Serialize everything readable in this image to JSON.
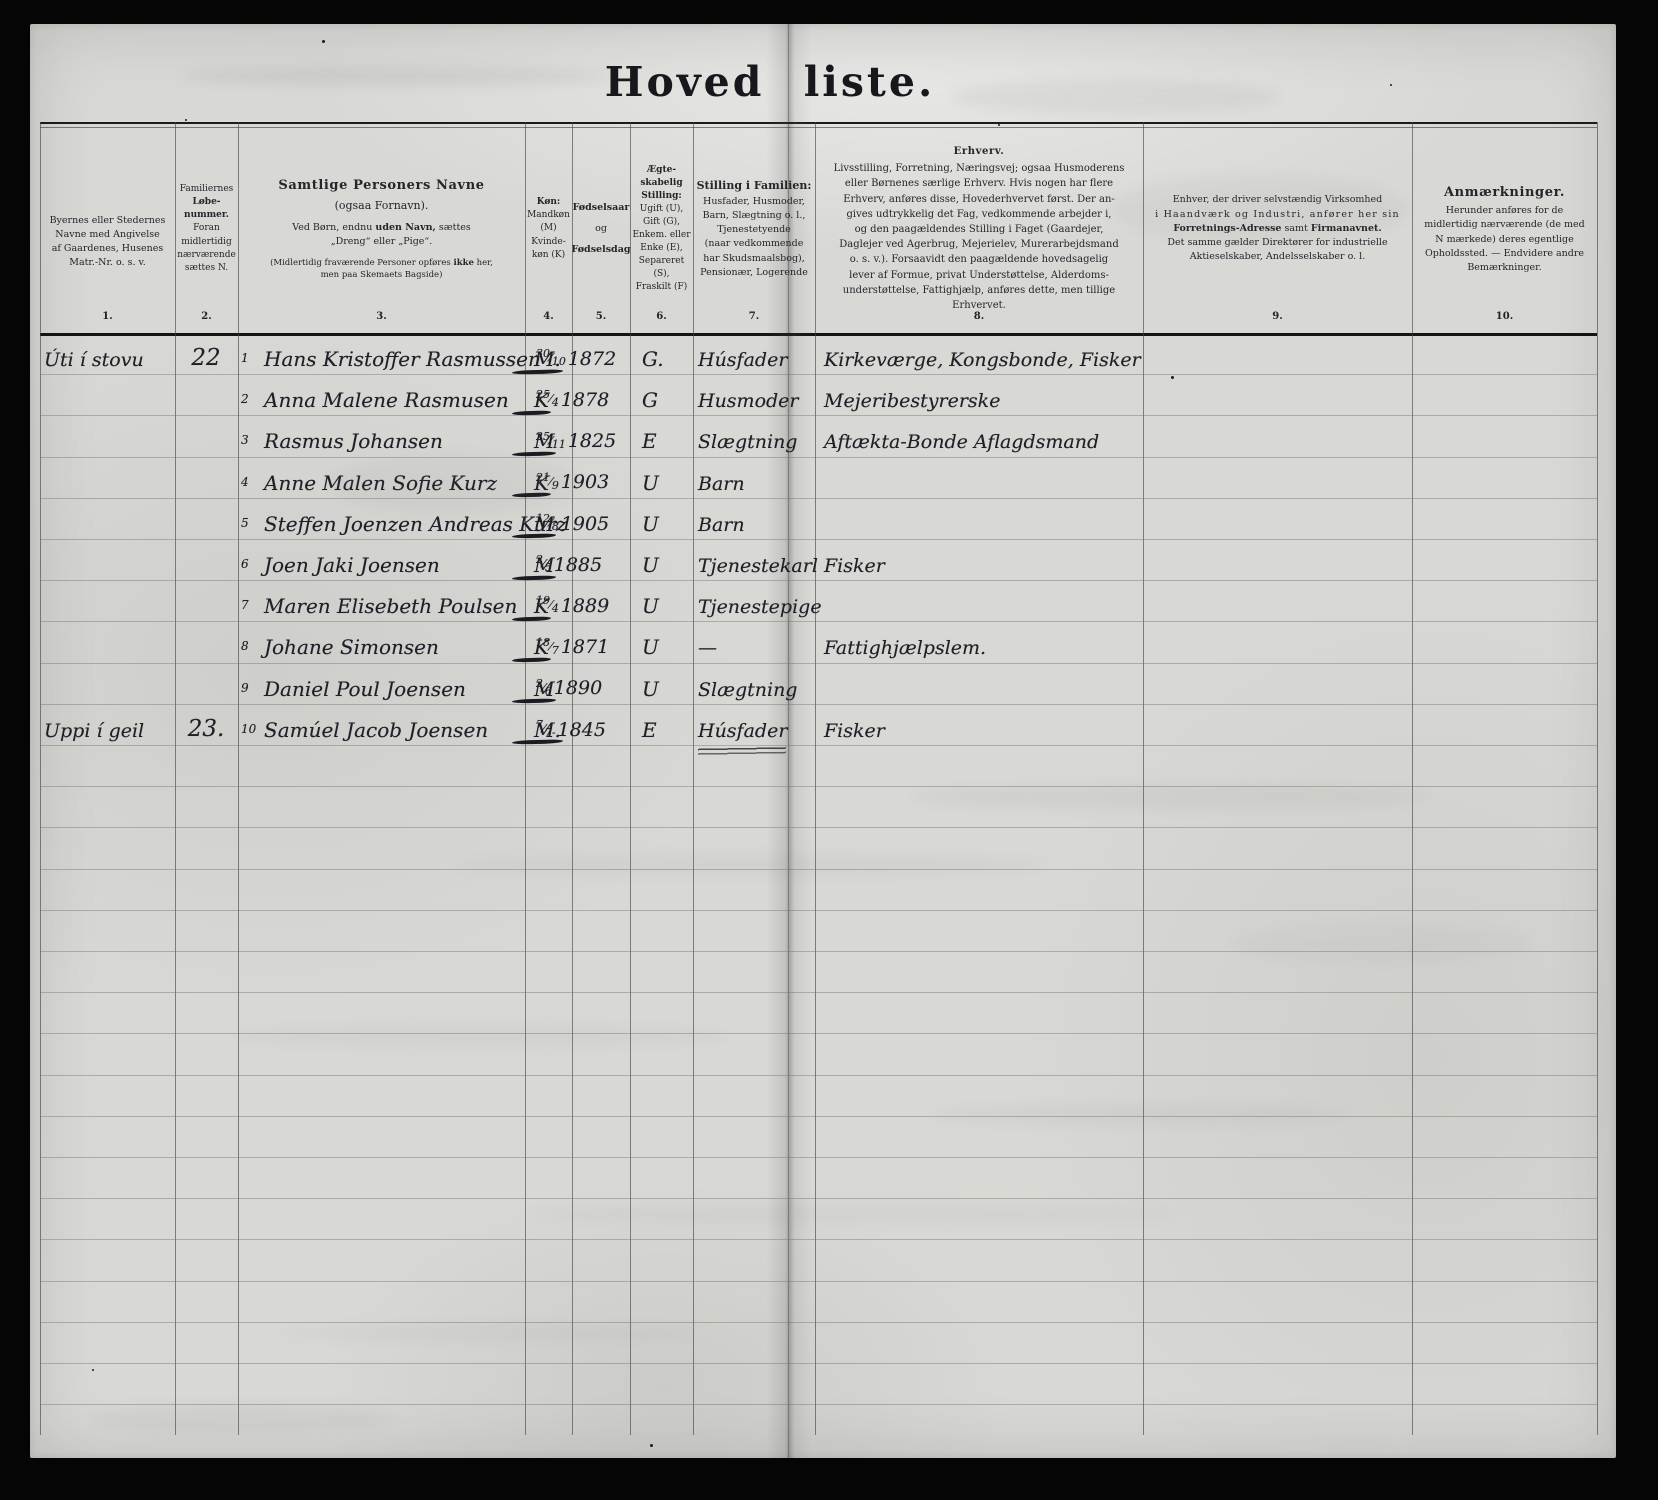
{
  "page": {
    "title": "Hoved liste."
  },
  "colors": {
    "paper": "#d8d8d5",
    "background": "#050505",
    "printed_ink": "#25252a",
    "hand_ink": "#1f2027"
  },
  "table": {
    "columns": [
      {
        "num": "1.",
        "lines": [
          {
            "t": "Byernes eller Stedernes"
          },
          {
            "t": "Navne med Angivelse"
          },
          {
            "t": "af Gaardenes, Husenes"
          },
          {
            "t": "Matr.-Nr. o. s. v."
          }
        ]
      },
      {
        "num": "2.",
        "lines": [
          {
            "t": "Familiernes"
          },
          {
            "t": "Løbe-",
            "b": 1
          },
          {
            "t": "nummer.",
            "b": 1
          },
          {
            "t": "Foran"
          },
          {
            "t": "midlertidig"
          },
          {
            "t": "nærværende"
          },
          {
            "t": "sættes N."
          }
        ]
      },
      {
        "num": "3.",
        "lines": [
          {
            "t": "Samtlige Personers Navne",
            "big": 1
          },
          {
            "t": "(ogsaa Fornavn).",
            "md": 1
          },
          {
            "gap": 1,
            "segs": [
              {
                "t": "Ved Børn, endnu "
              },
              {
                "t": "uden Navn,",
                "b": 1
              },
              {
                "t": " sættes"
              }
            ]
          },
          {
            "t": "„Dreng“ eller „Pige“."
          },
          {
            "gap": 1,
            "sm": 1,
            "segs": [
              {
                "t": "(Midlertidig fraværende Personer opføres "
              },
              {
                "t": "ikke",
                "b": 1
              },
              {
                "t": " her,"
              }
            ]
          },
          {
            "t": "men paa Skemaets Bagside)",
            "sm": 1
          }
        ]
      },
      {
        "num": "4.",
        "lines": [
          {
            "t": "Køn:",
            "b": 1
          },
          {
            "t": "Mandkøn"
          },
          {
            "t": "(M)"
          },
          {
            "t": "Kvinde-"
          },
          {
            "t": "køn (K)"
          }
        ]
      },
      {
        "num": "5.",
        "lines": [
          {
            "t": "Fødselsaar",
            "b": 1
          },
          {
            "t": "og",
            "gap": 1
          },
          {
            "t": "Fødselsdag",
            "b": 1,
            "gap": 1
          }
        ]
      },
      {
        "num": "6.",
        "lines": [
          {
            "t": "Ægte-",
            "b": 1
          },
          {
            "t": "skabelig",
            "b": 1
          },
          {
            "t": "Stilling:",
            "b": 1
          },
          {
            "t": "Ugift (U),"
          },
          {
            "t": "Gift (G),"
          },
          {
            "t": "Enkem. eller"
          },
          {
            "t": "Enke (E),"
          },
          {
            "t": "Separeret"
          },
          {
            "t": "(S),"
          },
          {
            "t": "Fraskilt (F)"
          }
        ]
      },
      {
        "num": "7.",
        "lines": [
          {
            "t": "Stilling i Familien:",
            "b": 1,
            "md": 1
          },
          {
            "t": "Husfader, Husmoder,"
          },
          {
            "t": "Barn, Slægtning o. l.,"
          },
          {
            "t": "Tjenestetyende"
          },
          {
            "t": "(naar vedkommende"
          },
          {
            "t": "har Skudsmaalsbog),"
          },
          {
            "t": "Pensionær, Logerende"
          }
        ]
      },
      {
        "num": "8.",
        "lines": [
          {
            "t": "Erhverv.",
            "big": 1
          },
          {
            "t": "Livsstilling, Forretning, Næringsvej; ogsaa Husmoderens"
          },
          {
            "t": "eller Børnenes særlige Erhverv.  Hvis nogen har flere"
          },
          {
            "t": "Erhverv, anføres disse, Hovederhvervet først.  Der an-"
          },
          {
            "t": "gives udtrykkelig det Fag, vedkommende arbejder i,"
          },
          {
            "t": "og den paagældendes Stilling i Faget (Gaardejer,"
          },
          {
            "t": "Daglejer ved Agerbrug, Mejerielev, Murerarbejdsmand"
          },
          {
            "t": "o. s. v.).  Forsaavidt den paagældende hovedsagelig"
          },
          {
            "t": "lever af Formue, privat Understøttelse, Alderdoms-"
          },
          {
            "t": "understøttelse, Fattighjælp, anføres dette, men tillige"
          },
          {
            "t": "Erhvervet."
          }
        ]
      },
      {
        "num": "9.",
        "lines": [
          {
            "t": "Enhver, der driver selvstændig Virksomhed"
          },
          {
            "t": "i Haandværk og Industri, anfører her sin",
            "sp": 1
          },
          {
            "segs": [
              {
                "t": "Forretnings-Adresse",
                "b": 1
              },
              {
                "t": " samt "
              },
              {
                "t": "Firmanavnet.",
                "b": 1
              }
            ]
          },
          {
            "t": "Det samme gælder Direktører for industrielle"
          },
          {
            "t": "Aktieselskaber, Andelsselskaber o. l."
          }
        ]
      },
      {
        "num": "10.",
        "lines": [
          {
            "t": "Anmærkninger.",
            "big": 1
          },
          {
            "t": "Herunder anføres for de"
          },
          {
            "t": "midlertidig nærværende (de med"
          },
          {
            "t": "N mærkede) deres egentlige"
          },
          {
            "t": "Opholdssted. — Endvidere andre"
          },
          {
            "t": "Bemærkninger."
          }
        ]
      }
    ],
    "rows": [
      {
        "place": "Úti í stovu",
        "family": "22",
        "no": "1",
        "name": "Hans Kristoffer Rasmussen",
        "sex": "M.",
        "day_month": "30/10",
        "year": "1872",
        "marital": "G.",
        "position": "Húsfader",
        "occupation": "Kirkeværge, Kongsbonde, Fisker"
      },
      {
        "place": "",
        "family": "",
        "no": "2",
        "name": "Anna Malene Rasmusen",
        "sex": "K",
        "day_month": "25/4",
        "year": "1878",
        "marital": "G",
        "position": "Husmoder",
        "occupation": "Mejeribestyrerske"
      },
      {
        "place": "",
        "family": "",
        "no": "3",
        "name": "Rasmus Johansen",
        "sex": "M",
        "day_month": "25/11",
        "year": "1825",
        "marital": "E",
        "position": "Slægtning",
        "occupation": "Aftækta-Bonde  Aflagdsmand"
      },
      {
        "place": "",
        "family": "",
        "no": "4",
        "name": "Anne Malen Sofie Kurz",
        "sex": "K",
        "day_month": "21/9",
        "year": "1903",
        "marital": "U",
        "position": "Barn",
        "occupation": ""
      },
      {
        "place": "",
        "family": "",
        "no": "5",
        "name": "Steffen Joenzen Andreas Kurz",
        "sex": "M",
        "day_month": "12/8",
        "year": "1905",
        "marital": "U",
        "position": "Barn",
        "occupation": ""
      },
      {
        "place": "",
        "family": "",
        "no": "6",
        "name": "Joen Jaki Joensen",
        "sex": "M",
        "day_month": "2/5",
        "year": "1885",
        "marital": "U",
        "position": "Tjenestekarl",
        "occupation": "Fisker"
      },
      {
        "place": "",
        "family": "",
        "no": "7",
        "name": "Maren Elisebeth Poulsen",
        "sex": "K",
        "day_month": "19/4",
        "year": "1889",
        "marital": "U",
        "position": "Tjenestepige",
        "occupation": ""
      },
      {
        "place": "",
        "family": "",
        "no": "8",
        "name": "Johane Simonsen",
        "sex": "K",
        "day_month": "18/7",
        "year": "1871",
        "marital": "U",
        "position": "—",
        "occupation": "Fattighjælpslem."
      },
      {
        "place": "",
        "family": "",
        "no": "9",
        "name": "Daniel Poul Joensen",
        "sex": "M",
        "day_month": "2/6",
        "year": "1890",
        "marital": "U",
        "position": "Slægtning",
        "occupation": ""
      },
      {
        "place": "Uppi í geil",
        "family": "23.",
        "no": "10",
        "name": "Samúel Jacob Joensen",
        "sex": "M.",
        "day_month": "7/7-",
        "year": "1845",
        "marital": "E",
        "position": "Húsfader",
        "occupation": "Fisker",
        "struck_below_position": true
      }
    ]
  }
}
